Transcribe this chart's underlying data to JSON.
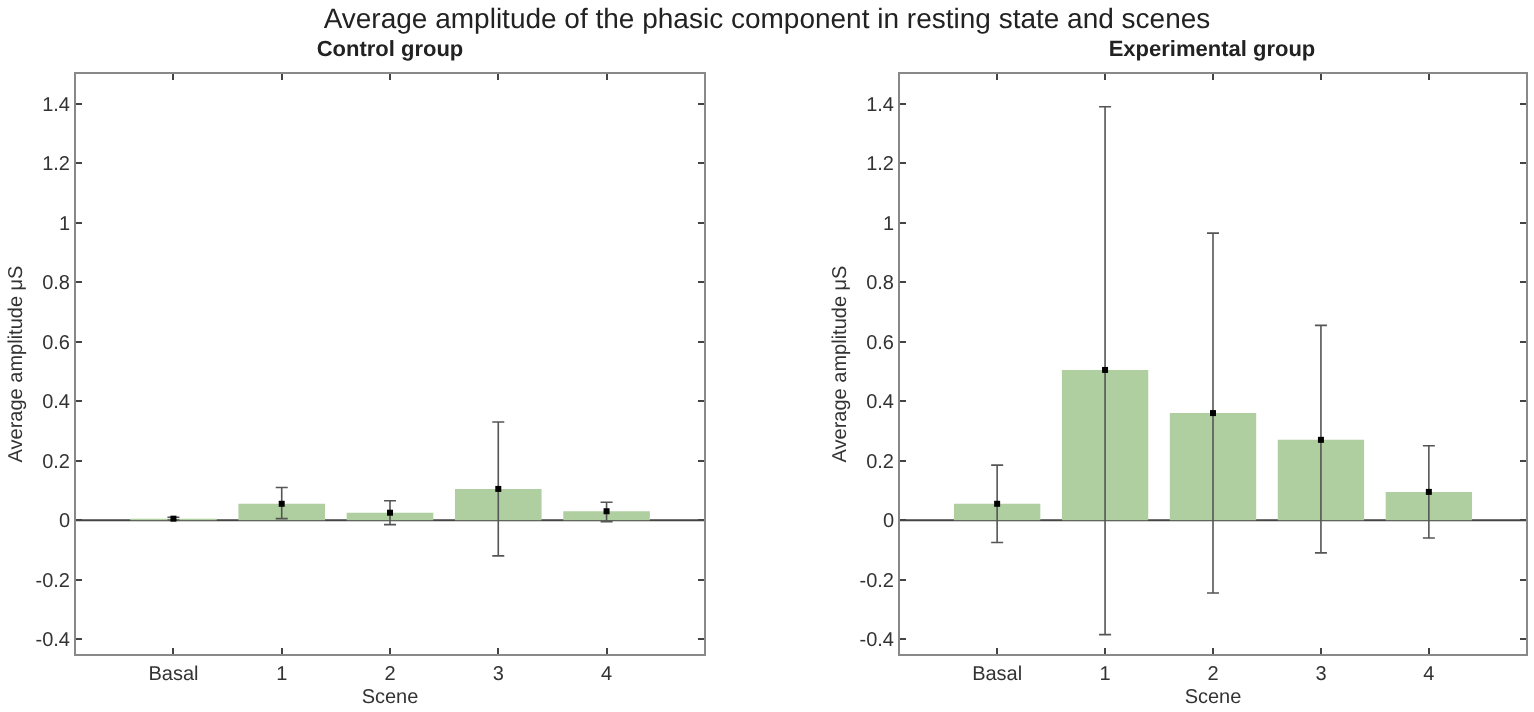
{
  "chart_data": [
    {
      "type": "bar",
      "title": "Control group",
      "annotations": [
        "Average amplitude of the phasic component in resting state and scenes"
      ],
      "xlabel": "Scene",
      "ylabel": "Average amplitude μS",
      "categories": [
        "Basal",
        "1",
        "2",
        "3",
        "4"
      ],
      "series": [
        {
          "color": "#b0cfa0",
          "values": [
            0.005,
            0.055,
            0.025,
            0.105,
            0.03
          ],
          "errors": [
            [
              0.0,
              0.01
            ],
            [
              0.005,
              0.11
            ],
            [
              -0.015,
              0.065
            ],
            [
              -0.12,
              0.33
            ],
            [
              -0.005,
              0.06
            ]
          ]
        },
        {
          "type": "scatter",
          "color": "#000000",
          "x": [
            "Basal",
            "1",
            "2",
            "3",
            "4"
          ],
          "values": [
            0.005,
            0.055,
            0.025,
            0.105,
            0.03
          ]
        }
      ],
      "ylim": [
        -0.45,
        1.5
      ],
      "yticks": [
        -0.4,
        -0.2,
        0,
        0.2,
        0.4,
        0.6,
        0.8,
        1,
        1.2,
        1.4
      ],
      "ref_lines": [
        {
          "axis": "y",
          "value": 0,
          "color": "#444444"
        }
      ],
      "marker": "square",
      "grid": false
    },
    {
      "type": "bar",
      "title": "Experimental group",
      "xlabel": "Scene",
      "ylabel": "Average amplitude μS",
      "categories": [
        "Basal",
        "1",
        "2",
        "3",
        "4"
      ],
      "series": [
        {
          "color": "#b0cfa0",
          "values": [
            0.055,
            0.505,
            0.36,
            0.27,
            0.095
          ],
          "errors": [
            [
              -0.075,
              0.185
            ],
            [
              -0.385,
              1.39
            ],
            [
              -0.245,
              0.965
            ],
            [
              -0.11,
              0.655
            ],
            [
              -0.06,
              0.25
            ]
          ]
        },
        {
          "type": "scatter",
          "color": "#000000",
          "x": [
            "Basal",
            "1",
            "2",
            "3",
            "4"
          ],
          "values": [
            0.055,
            0.505,
            0.36,
            0.27,
            0.095
          ]
        }
      ],
      "ylim": [
        -0.45,
        1.5
      ],
      "yticks": [
        -0.4,
        -0.2,
        0,
        0.2,
        0.4,
        0.6,
        0.8,
        1,
        1.2,
        1.4
      ],
      "ref_lines": [
        {
          "axis": "y",
          "value": 0,
          "color": "#444444"
        }
      ],
      "marker": "square",
      "grid": false
    }
  ]
}
